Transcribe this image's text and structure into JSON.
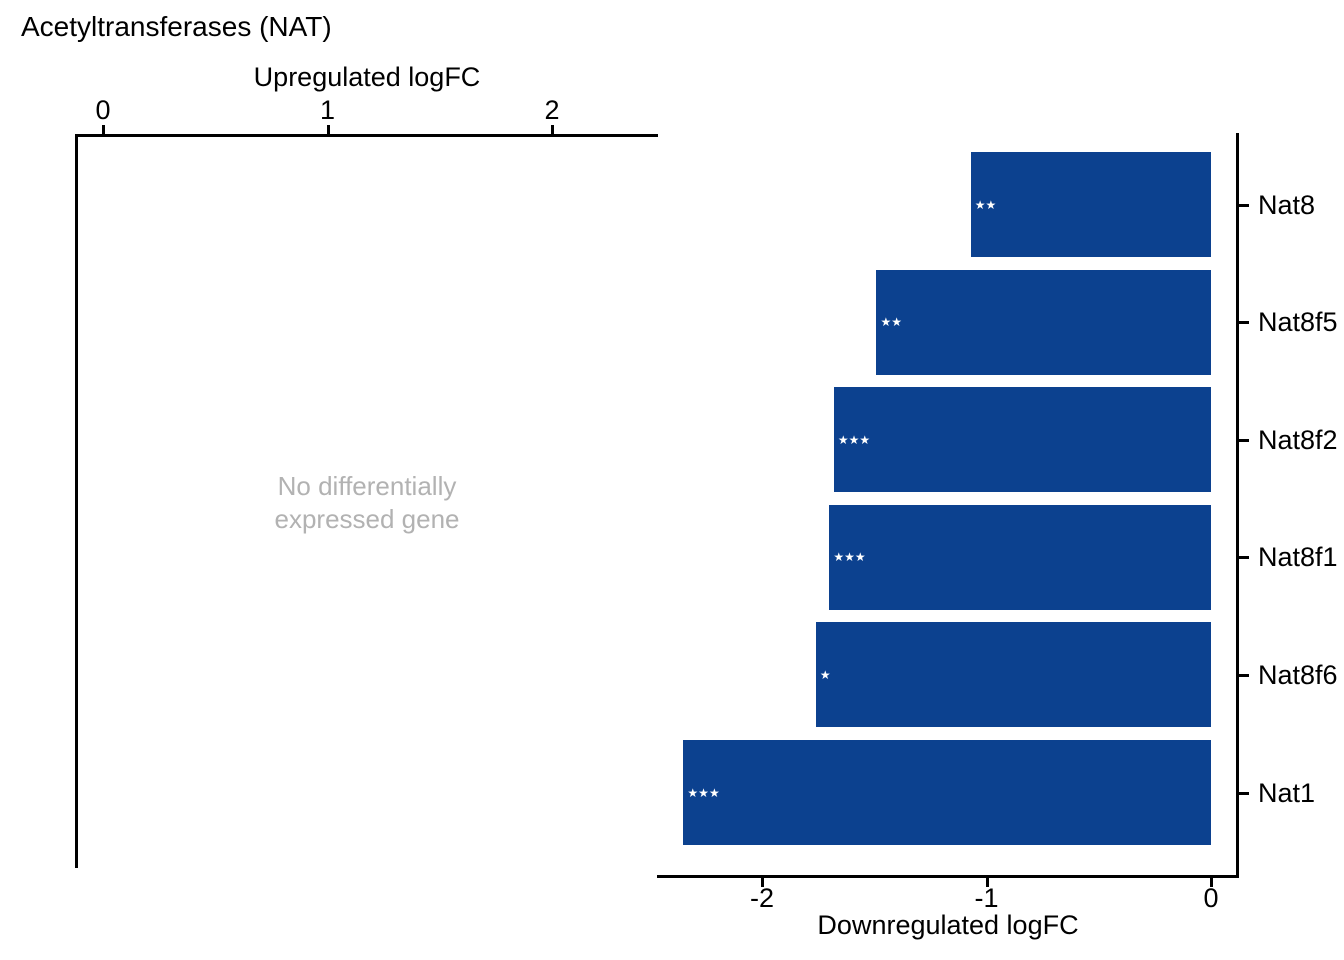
{
  "title": "Acetyltransferases (NAT)",
  "colors": {
    "bar": "#0C418F",
    "axis": "#000000",
    "muted_text": "#B2B2B2",
    "star": "#FFFFFF"
  },
  "annotation": {
    "line1": "No differentially",
    "line2": "expressed gene"
  },
  "chart_data": [
    {
      "type": "bar",
      "panel": "upregulated",
      "orientation": "horizontal",
      "xlabel": "Upregulated logFC",
      "axis_position": "top",
      "x_ticks": [
        0,
        1,
        2
      ],
      "x_tick_labels": [
        "0",
        "1",
        "2"
      ],
      "xlim": [
        -0.12,
        2.46
      ],
      "grid": false,
      "categories": [],
      "values": [],
      "annotation": "No differentially expressed gene"
    },
    {
      "type": "bar",
      "panel": "downregulated",
      "orientation": "horizontal",
      "xlabel": "Downregulated logFC",
      "axis_position": "bottom",
      "x_ticks": [
        -2,
        -1,
        0
      ],
      "x_tick_labels": [
        "-2",
        "-1",
        "0"
      ],
      "xlim": [
        -2.47,
        0.12
      ],
      "grid": false,
      "categories": [
        "Nat8",
        "Nat8f5",
        "Nat8f2",
        "Nat8f1",
        "Nat8f6",
        "Nat1"
      ],
      "values": [
        -1.07,
        -1.49,
        -1.68,
        -1.7,
        -1.76,
        -2.35
      ],
      "significance": [
        "★★",
        "★★",
        "★★★",
        "★★★",
        "★",
        "★★★"
      ],
      "bar_color": "#0C418F"
    }
  ]
}
